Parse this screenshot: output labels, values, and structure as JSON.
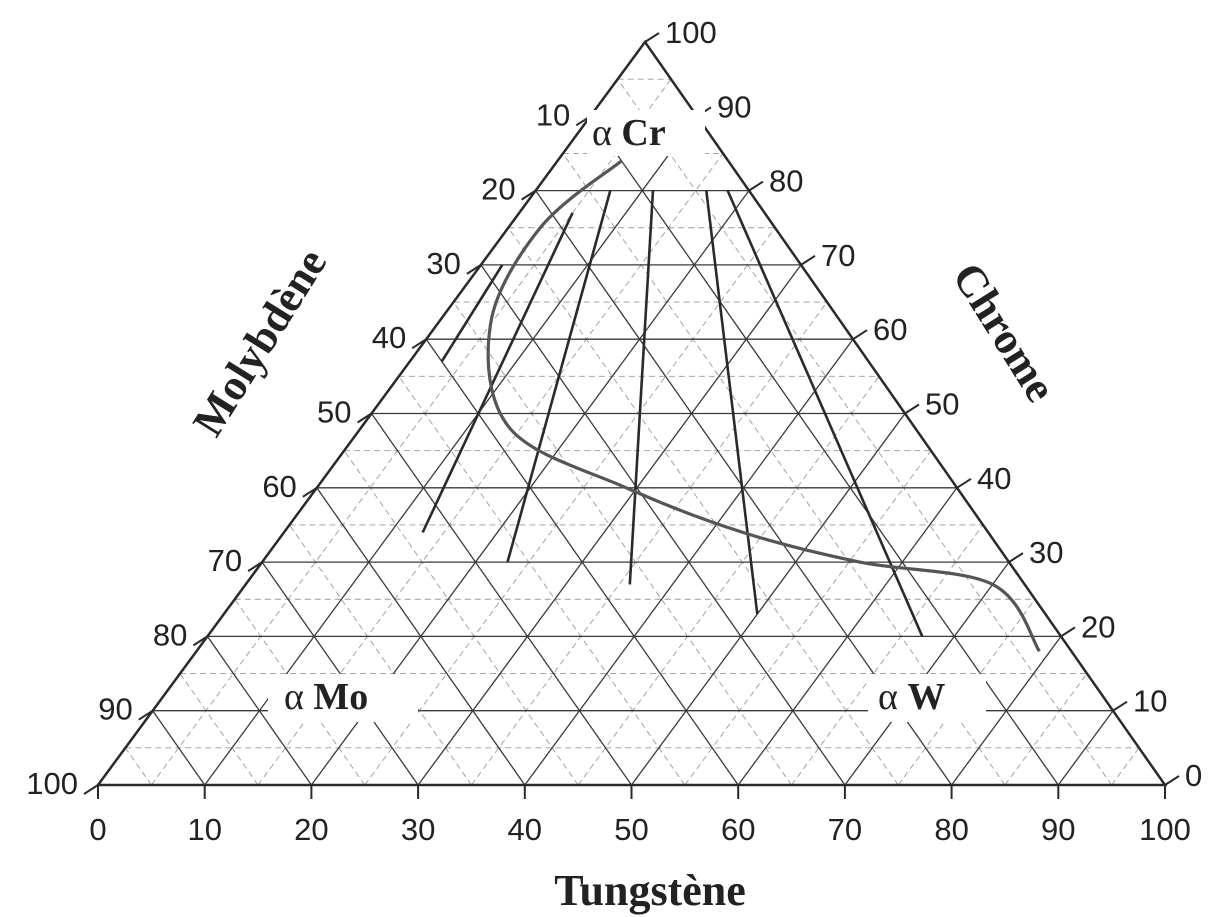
{
  "diagram": {
    "type": "ternary-phase-diagram",
    "axes": {
      "bottom": {
        "title": "Tungstène",
        "ticks": [
          "0",
          "10",
          "20",
          "30",
          "40",
          "50",
          "60",
          "70",
          "80",
          "90",
          "100"
        ]
      },
      "left": {
        "title": "Molybdène",
        "ticks": [
          "10",
          "20",
          "30",
          "40",
          "50",
          "60",
          "70",
          "80",
          "90",
          "100"
        ]
      },
      "right": {
        "title": "Chrome",
        "ticks": [
          "0",
          "10",
          "20",
          "30",
          "40",
          "50",
          "60",
          "70",
          "80",
          "90",
          "100"
        ]
      }
    },
    "phases": [
      {
        "greek": "α",
        "element": "Cr"
      },
      {
        "greek": "α",
        "element": "Mo"
      },
      {
        "greek": "α",
        "element": "W"
      }
    ],
    "boundary_curve": [
      {
        "W": 6,
        "Cr": 84,
        "Mo": 10
      },
      {
        "W": 3,
        "Cr": 75,
        "Mo": 22
      },
      {
        "W": 5,
        "Cr": 62,
        "Mo": 33
      },
      {
        "W": 14,
        "Cr": 48,
        "Mo": 38
      },
      {
        "W": 29,
        "Cr": 40,
        "Mo": 31
      },
      {
        "W": 43,
        "Cr": 34,
        "Mo": 23
      },
      {
        "W": 56,
        "Cr": 30,
        "Mo": 14
      },
      {
        "W": 70,
        "Cr": 27,
        "Mo": 3
      },
      {
        "W": 79,
        "Cr": 18,
        "Mo": 3
      }
    ],
    "tie_lines": [
      {
        "from": {
          "W": 3,
          "Cr": 57,
          "Mo": 40
        },
        "to": {
          "W": 2,
          "Cr": 70,
          "Mo": 28
        }
      },
      {
        "from": {
          "W": 13,
          "Cr": 34,
          "Mo": 53
        },
        "to": {
          "W": 5,
          "Cr": 77,
          "Mo": 18
        }
      },
      {
        "from": {
          "W": 23,
          "Cr": 30,
          "Mo": 47
        },
        "to": {
          "W": 7,
          "Cr": 80,
          "Mo": 13
        }
      },
      {
        "from": {
          "W": 36,
          "Cr": 27,
          "Mo": 37
        },
        "to": {
          "W": 11,
          "Cr": 80,
          "Mo": 9
        }
      },
      {
        "from": {
          "W": 50,
          "Cr": 23,
          "Mo": 27
        },
        "to": {
          "W": 16,
          "Cr": 80,
          "Mo": 4
        }
      },
      {
        "from": {
          "W": 67,
          "Cr": 20,
          "Mo": 13
        },
        "to": {
          "W": 18,
          "Cr": 80,
          "Mo": 2
        }
      }
    ]
  }
}
